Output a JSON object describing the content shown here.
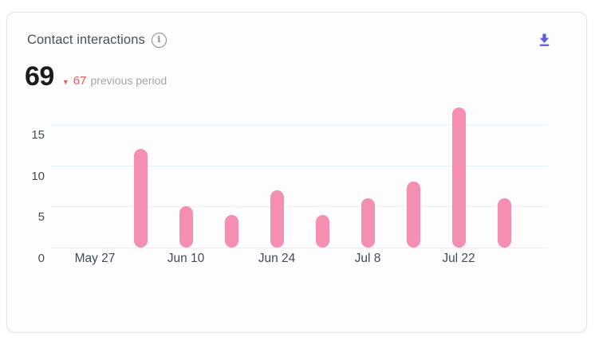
{
  "card": {
    "title": "Contact interactions",
    "total": "69",
    "comparison": {
      "value": "67",
      "label": "previous period"
    }
  },
  "icons": {
    "info": "i",
    "trend_down": "▼",
    "download": "arrow-down-to-line"
  },
  "colors": {
    "bar": "#f48fb1",
    "accent": "#5a5ce8",
    "negative": "#f2564f",
    "title_text": "#44525c",
    "total_text": "#1b1c1e",
    "muted_text": "#a7a7a7",
    "axis_label": "#3f4d56",
    "gridline": "#e3f2f8",
    "card_border": "#e4e4e7",
    "card_background": "#fdfdfe"
  },
  "chart_data": {
    "type": "bar",
    "title": "Contact interactions",
    "categories": [
      "May 27",
      "",
      "Jun 10",
      "",
      "Jun 24",
      "",
      "Jul 8",
      "",
      "Jul 22",
      ""
    ],
    "values": [
      0,
      12,
      5,
      4,
      7,
      4,
      6,
      8,
      17,
      6
    ],
    "total": 69,
    "y_ticks": [
      0,
      5,
      10,
      15
    ],
    "ylim": [
      0,
      17
    ],
    "xlabel": "",
    "ylabel": "",
    "grid": true,
    "legend": false,
    "bar_color": "#f48fb1"
  }
}
